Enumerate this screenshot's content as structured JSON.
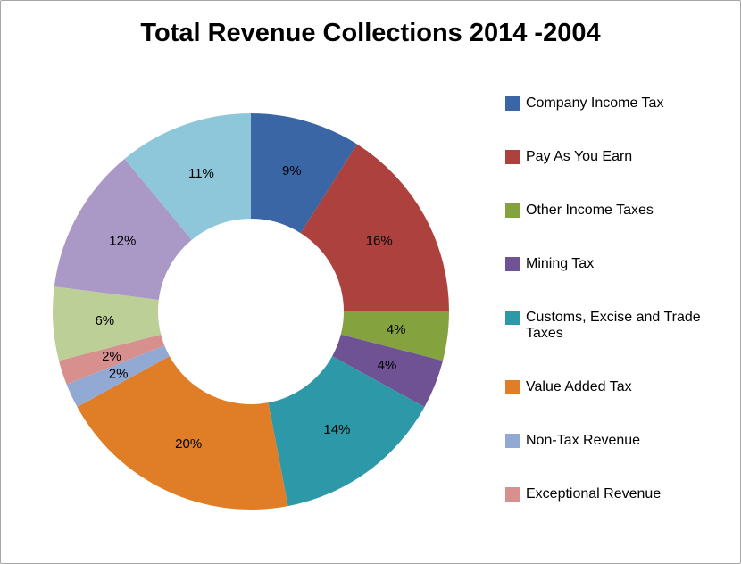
{
  "chart_data": {
    "type": "pie",
    "subtype": "donut",
    "title": "Total Revenue Collections 2014 -2004",
    "legend_position": "right",
    "slices": [
      {
        "label": "Company Income Tax",
        "value": 9,
        "pct_label": "9%",
        "color": "#3a66a5",
        "in_legend": true
      },
      {
        "label": "Pay As You Earn",
        "value": 16,
        "pct_label": "16%",
        "color": "#ac413e",
        "in_legend": true
      },
      {
        "label": "Other Income Taxes",
        "value": 4,
        "pct_label": "4%",
        "color": "#84a33e",
        "in_legend": true
      },
      {
        "label": "Mining Tax",
        "value": 4,
        "pct_label": "4%",
        "color": "#6e5294",
        "in_legend": true
      },
      {
        "label": "Customs, Excise and Trade Taxes",
        "value": 14,
        "pct_label": "14%",
        "color": "#2d98a8",
        "in_legend": true
      },
      {
        "label": "Value Added Tax",
        "value": 20,
        "pct_label": "20%",
        "color": "#e07e27",
        "in_legend": true
      },
      {
        "label": "Non-Tax Revenue",
        "value": 2,
        "pct_label": "2%",
        "color": "#92a9d4",
        "in_legend": true
      },
      {
        "label": "Exceptional Revenue",
        "value": 2,
        "pct_label": "2%",
        "color": "#d8908f",
        "in_legend": true
      },
      {
        "label": "",
        "value": 6,
        "pct_label": "6%",
        "color": "#bccf96",
        "in_legend": false
      },
      {
        "label": "",
        "value": 12,
        "pct_label": "12%",
        "color": "#aa98c6",
        "in_legend": false
      },
      {
        "label": "",
        "value": 11,
        "pct_label": "11%",
        "color": "#8ec6da",
        "in_legend": false
      }
    ]
  }
}
